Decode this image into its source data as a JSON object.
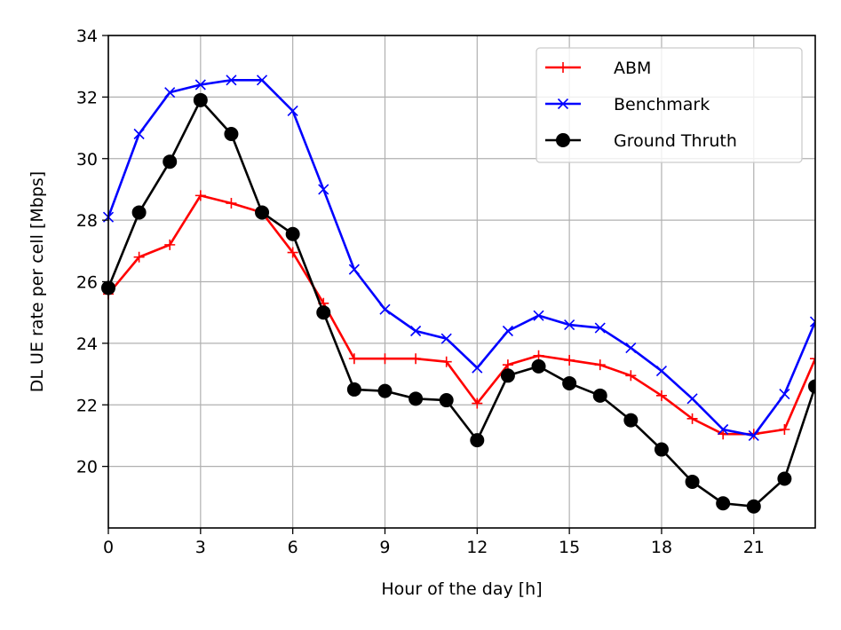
{
  "chart_data": {
    "type": "line",
    "xlabel": "Hour of the day [h]",
    "ylabel": "DL UE rate per cell [Mbps]",
    "xlim": [
      0,
      23
    ],
    "ylim": [
      18,
      34
    ],
    "xticks": [
      0,
      3,
      6,
      9,
      12,
      15,
      18,
      21
    ],
    "yticks": [
      20,
      22,
      24,
      26,
      28,
      30,
      32,
      34
    ],
    "grid": true,
    "legend_position": "top-right",
    "x": [
      0,
      1,
      2,
      3,
      4,
      5,
      6,
      7,
      8,
      9,
      10,
      11,
      12,
      13,
      14,
      15,
      16,
      17,
      18,
      19,
      20,
      21,
      22,
      23
    ],
    "series": [
      {
        "name": "ABM",
        "color": "#ff0000",
        "marker": "plus",
        "values": [
          25.6,
          26.8,
          27.2,
          28.8,
          28.55,
          28.25,
          26.95,
          25.3,
          23.5,
          23.5,
          23.5,
          23.4,
          22.05,
          23.3,
          23.6,
          23.45,
          23.3,
          22.95,
          22.3,
          21.55,
          21.05,
          21.05,
          21.2,
          23.5
        ]
      },
      {
        "name": "Benchmark",
        "color": "#0000ff",
        "marker": "x",
        "values": [
          28.1,
          30.8,
          32.15,
          32.4,
          32.55,
          32.55,
          31.55,
          29.0,
          26.4,
          25.1,
          24.4,
          24.15,
          23.2,
          24.4,
          24.9,
          24.6,
          24.5,
          23.85,
          23.1,
          22.2,
          21.2,
          21.0,
          22.35,
          24.7
        ]
      },
      {
        "name": "Ground Thruth",
        "color": "#000000",
        "marker": "circle",
        "values": [
          25.8,
          28.25,
          29.9,
          31.9,
          30.8,
          28.25,
          27.55,
          25.0,
          22.5,
          22.45,
          22.2,
          22.15,
          20.85,
          22.95,
          23.25,
          22.7,
          22.3,
          21.5,
          20.55,
          19.5,
          18.8,
          18.7,
          19.6,
          22.6
        ]
      }
    ]
  }
}
